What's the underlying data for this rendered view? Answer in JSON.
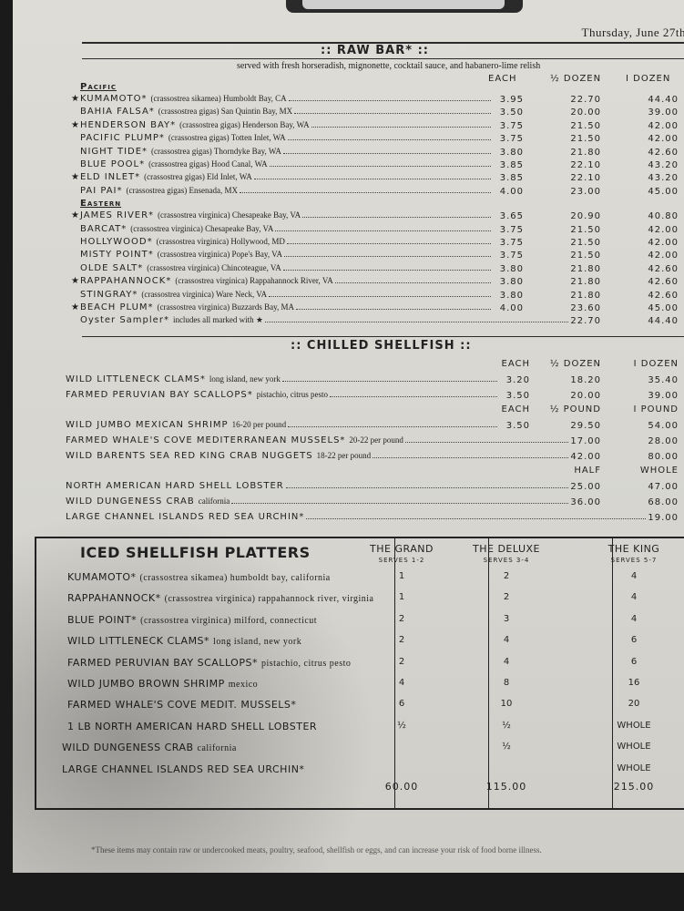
{
  "date": "Thursday, June 27th",
  "raw_bar": {
    "title": ":: RAW BAR* ::",
    "subtitle": "served with fresh horseradish, mignonette, cocktail sauce, and habanero-lime relish",
    "columns": [
      "EACH",
      "½ DOZEN",
      "I DOZEN"
    ],
    "sections": [
      {
        "label": "Pacific",
        "items": [
          {
            "star": true,
            "name": "KUMAMOTO*",
            "desc": "(crassostrea sikamea) Humboldt Bay, CA",
            "prices": [
              "3.95",
              "22.70",
              "44.40"
            ]
          },
          {
            "star": false,
            "name": "BAHIA FALSA*",
            "desc": "(crassostrea gigas) San Quintin Bay, MX",
            "prices": [
              "3.50",
              "20.00",
              "39.00"
            ]
          },
          {
            "star": true,
            "name": "HENDERSON BAY*",
            "desc": "(crassostrea gigas) Henderson Bay, WA",
            "prices": [
              "3.75",
              "21.50",
              "42.00"
            ]
          },
          {
            "star": false,
            "name": "PACIFIC PLUMP*",
            "desc": "(crassostrea gigas) Totten Inlet, WA",
            "prices": [
              "3.75",
              "21.50",
              "42.00"
            ]
          },
          {
            "star": false,
            "name": "NIGHT TIDE*",
            "desc": "(crassostrea gigas) Thorndyke Bay, WA",
            "prices": [
              "3.80",
              "21.80",
              "42.60"
            ]
          },
          {
            "star": false,
            "name": "BLUE POOL*",
            "desc": "(crassostrea gigas) Hood Canal, WA",
            "prices": [
              "3.85",
              "22.10",
              "43.20"
            ]
          },
          {
            "star": true,
            "name": "ELD INLET*",
            "desc": "(crassostrea gigas) Eld Inlet, WA",
            "prices": [
              "3.85",
              "22.10",
              "43.20"
            ]
          },
          {
            "star": false,
            "name": "PAI PAI*",
            "desc": "(crassostrea gigas) Ensenada, MX",
            "prices": [
              "4.00",
              "23.00",
              "45.00"
            ]
          }
        ]
      },
      {
        "label": "Eastern",
        "items": [
          {
            "star": true,
            "name": "JAMES RIVER*",
            "desc": "(crassostrea virginica) Chesapeake Bay, VA",
            "prices": [
              "3.65",
              "20.90",
              "40.80"
            ]
          },
          {
            "star": false,
            "name": "BARCAT*",
            "desc": "(crassostrea virginica) Chesapeake Bay, VA",
            "prices": [
              "3.75",
              "21.50",
              "42.00"
            ]
          },
          {
            "star": false,
            "name": "HOLLYWOOD*",
            "desc": "(crassostrea virginica) Hollywood, MD",
            "prices": [
              "3.75",
              "21.50",
              "42.00"
            ]
          },
          {
            "star": false,
            "name": "MISTY POINT*",
            "desc": "(crassostrea virginica) Pope's Bay, VA",
            "prices": [
              "3.75",
              "21.50",
              "42.00"
            ]
          },
          {
            "star": false,
            "name": "OLDE SALT*",
            "desc": "(crassostrea virginica) Chincoteague, VA",
            "prices": [
              "3.80",
              "21.80",
              "42.60"
            ]
          },
          {
            "star": true,
            "name": "RAPPAHANNOCK*",
            "desc": "(crassostrea virginica) Rappahannock River, VA",
            "prices": [
              "3.80",
              "21.80",
              "42.60"
            ]
          },
          {
            "star": false,
            "name": "STINGRAY*",
            "desc": "(crassostrea virginica) Ware Neck, VA",
            "prices": [
              "3.80",
              "21.80",
              "42.60"
            ]
          },
          {
            "star": true,
            "name": "BEACH PLUM*",
            "desc": "(crassostrea virginica) Buzzards Bay, MA",
            "prices": [
              "4.00",
              "23.60",
              "45.00"
            ]
          },
          {
            "star": false,
            "name": "Oyster Sampler*",
            "desc": "includes all marked with ★",
            "prices": [
              null,
              "22.70",
              "44.40"
            ]
          }
        ]
      }
    ]
  },
  "chilled": {
    "title": ":: CHILLED SHELLFISH ::",
    "groups": [
      {
        "columns": [
          "EACH",
          "½ DOZEN",
          "I DOZEN"
        ],
        "items": [
          {
            "name": "WILD LITTLENECK CLAMS*",
            "desc": "long island, new york",
            "prices": [
              "3.20",
              "18.20",
              "35.40"
            ]
          },
          {
            "name": "FARMED PERUVIAN BAY SCALLOPS*",
            "desc": "pistachio, citrus pesto",
            "prices": [
              "3.50",
              "20.00",
              "39.00"
            ]
          }
        ]
      },
      {
        "columns": [
          "EACH",
          "½ POUND",
          "I POUND"
        ],
        "items": [
          {
            "name": "WILD JUMBO MEXICAN SHRIMP",
            "desc": "16-20 per pound",
            "prices": [
              "3.50",
              "29.50",
              "54.00"
            ]
          },
          {
            "name": "FARMED WHALE'S COVE MEDITERRANEAN MUSSELS*",
            "desc": "20-22 per pound",
            "prices": [
              null,
              "17.00",
              "28.00"
            ]
          },
          {
            "name": "WILD BARENTS SEA RED KING CRAB NUGGETS",
            "desc": "18-22 per pound",
            "prices": [
              null,
              "42.00",
              "80.00"
            ]
          }
        ]
      },
      {
        "columns": [
          null,
          "HALF",
          "WHOLE"
        ],
        "items": [
          {
            "name": "NORTH AMERICAN HARD SHELL LOBSTER",
            "desc": "",
            "prices": [
              null,
              "25.00",
              "47.00"
            ]
          },
          {
            "name": "WILD DUNGENESS CRAB",
            "desc": "california",
            "prices": [
              null,
              "36.00",
              "68.00"
            ]
          },
          {
            "name": "LARGE CHANNEL ISLANDS RED SEA URCHIN*",
            "desc": "",
            "prices": [
              null,
              null,
              "19.00"
            ]
          }
        ]
      }
    ]
  },
  "platters": {
    "title": "ICED SHELLFISH PLATTERS",
    "columns": [
      {
        "name": "THE GRAND",
        "serves": "SERVES 1-2",
        "total": "60.00"
      },
      {
        "name": "THE DELUXE",
        "serves": "SERVES 3-4",
        "total": "115.00"
      },
      {
        "name": "THE KING",
        "serves": "SERVES 5-7",
        "total": "215.00"
      }
    ],
    "items": [
      {
        "name": "KUMAMOTO*",
        "desc": "(crassostrea sikamea) humboldt bay, california",
        "qty": [
          "1",
          "2",
          "4"
        ]
      },
      {
        "name": "RAPPAHANNOCK*",
        "desc": "(crassostrea virginica) rappahannock river, virginia",
        "qty": [
          "1",
          "2",
          "4"
        ]
      },
      {
        "name": "BLUE POINT*",
        "desc": "(crassostrea virginica) milford, connecticut",
        "qty": [
          "2",
          "3",
          "4"
        ]
      },
      {
        "name": "WILD LITTLENECK CLAMS*",
        "desc": "long island, new york",
        "qty": [
          "2",
          "4",
          "6"
        ]
      },
      {
        "name": "FARMED PERUVIAN BAY SCALLOPS*",
        "desc": "pistachio, citrus pesto",
        "qty": [
          "2",
          "4",
          "6"
        ]
      },
      {
        "name": "WILD JUMBO BROWN SHRIMP",
        "desc": "mexico",
        "qty": [
          "4",
          "8",
          "16"
        ]
      },
      {
        "name": "FARMED WHALE'S COVE MEDIT. MUSSELS*",
        "desc": "",
        "qty": [
          "6",
          "10",
          "20"
        ]
      },
      {
        "name": "1 LB NORTH AMERICAN HARD SHELL LOBSTER",
        "desc": "",
        "qty": [
          "½",
          "½",
          "WHOLE"
        ]
      },
      {
        "name": "WILD DUNGENESS CRAB",
        "desc": "california",
        "qty": [
          "",
          "½",
          "WHOLE"
        ]
      },
      {
        "name": "LARGE CHANNEL ISLANDS RED SEA URCHIN*",
        "desc": "",
        "qty": [
          "",
          "",
          "WHOLE"
        ]
      }
    ]
  },
  "footer": "*These items may contain raw or undercooked meats, poultry, seafood, shellfish or eggs, and can increase your risk of food borne illness."
}
